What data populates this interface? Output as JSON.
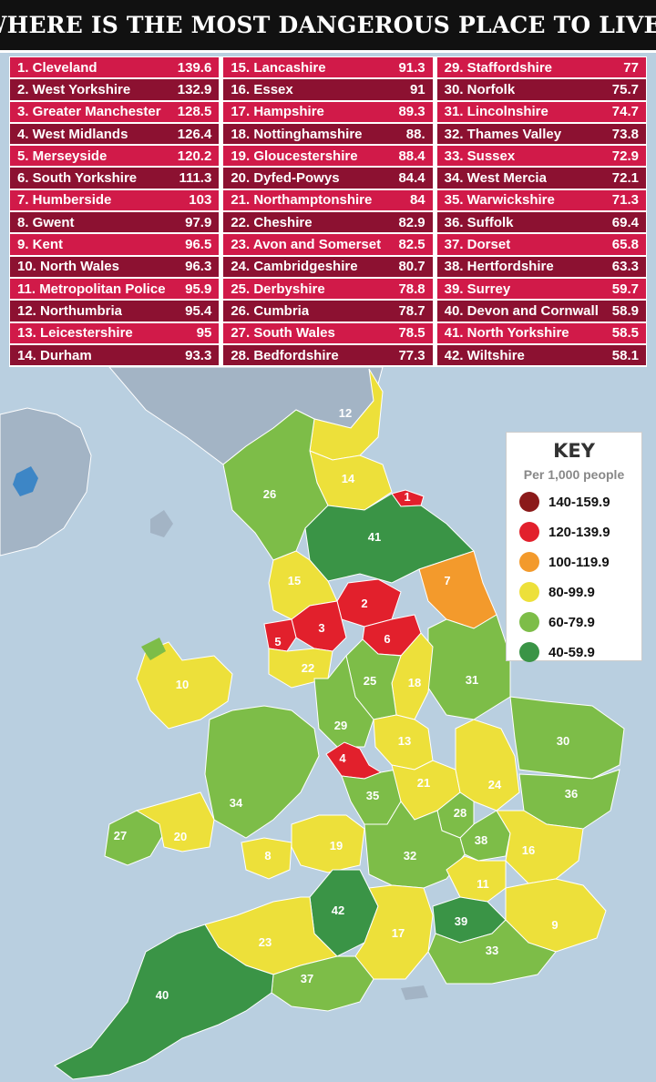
{
  "title": "WHERE IS THE MOST DANGEROUS PLACE TO LIVE?",
  "table": [
    [
      {
        "rank": "1.",
        "name": "Cleveland",
        "value": "139.6",
        "shade": "light"
      },
      {
        "rank": "2.",
        "name": "West Yorkshire",
        "value": "132.9",
        "shade": "dark"
      },
      {
        "rank": "3.",
        "name": "Greater Manchester",
        "value": "128.5",
        "shade": "light"
      },
      {
        "rank": "4.",
        "name": "West Midlands",
        "value": "126.4",
        "shade": "dark"
      },
      {
        "rank": "5.",
        "name": "Merseyside",
        "value": "120.2",
        "shade": "light"
      },
      {
        "rank": "6.",
        "name": "South Yorkshire",
        "value": "111.3",
        "shade": "dark"
      },
      {
        "rank": "7.",
        "name": "Humberside",
        "value": "103",
        "shade": "light"
      },
      {
        "rank": "8.",
        "name": "Gwent",
        "value": "97.9",
        "shade": "dark"
      },
      {
        "rank": "9.",
        "name": "Kent",
        "value": "96.5",
        "shade": "light"
      },
      {
        "rank": "10.",
        "name": "North Wales",
        "value": "96.3",
        "shade": "dark"
      },
      {
        "rank": "11.",
        "name": "Metropolitan Police",
        "value": "95.9",
        "shade": "light"
      },
      {
        "rank": "12.",
        "name": "Northumbria",
        "value": "95.4",
        "shade": "dark"
      },
      {
        "rank": "13.",
        "name": "Leicestershire",
        "value": "95",
        "shade": "light"
      },
      {
        "rank": "14.",
        "name": "Durham",
        "value": "93.3",
        "shade": "dark"
      }
    ],
    [
      {
        "rank": "15.",
        "name": "Lancashire",
        "value": "91.3",
        "shade": "light"
      },
      {
        "rank": "16.",
        "name": "Essex",
        "value": "91",
        "shade": "dark"
      },
      {
        "rank": "17.",
        "name": "Hampshire",
        "value": "89.3",
        "shade": "light"
      },
      {
        "rank": "18.",
        "name": "Nottinghamshire",
        "value": "88.",
        "shade": "dark"
      },
      {
        "rank": "19.",
        "name": "Gloucestershire",
        "value": "88.4",
        "shade": "light"
      },
      {
        "rank": "20.",
        "name": "Dyfed-Powys",
        "value": "84.4",
        "shade": "dark"
      },
      {
        "rank": "21.",
        "name": "Northamptonshire",
        "value": "84",
        "shade": "light"
      },
      {
        "rank": "22.",
        "name": "Cheshire",
        "value": "82.9",
        "shade": "dark"
      },
      {
        "rank": "23.",
        "name": "Avon and Somerset",
        "value": "82.5",
        "shade": "light"
      },
      {
        "rank": "24.",
        "name": "Cambridgeshire",
        "value": "80.7",
        "shade": "dark"
      },
      {
        "rank": "25.",
        "name": "Derbyshire",
        "value": "78.8",
        "shade": "light"
      },
      {
        "rank": "26.",
        "name": "Cumbria",
        "value": "78.7",
        "shade": "dark"
      },
      {
        "rank": "27.",
        "name": "South Wales",
        "value": "78.5",
        "shade": "light"
      },
      {
        "rank": "28.",
        "name": "Bedfordshire",
        "value": "77.3",
        "shade": "dark"
      }
    ],
    [
      {
        "rank": "29.",
        "name": "Staffordshire",
        "value": "77",
        "shade": "light"
      },
      {
        "rank": "30.",
        "name": "Norfolk",
        "value": "75.7",
        "shade": "dark"
      },
      {
        "rank": "31.",
        "name": "Lincolnshire",
        "value": "74.7",
        "shade": "light"
      },
      {
        "rank": "32.",
        "name": "Thames Valley",
        "value": "73.8",
        "shade": "dark"
      },
      {
        "rank": "33.",
        "name": "Sussex",
        "value": "72.9",
        "shade": "light"
      },
      {
        "rank": "34.",
        "name": "West Mercia",
        "value": "72.1",
        "shade": "dark"
      },
      {
        "rank": "35.",
        "name": "Warwickshire",
        "value": "71.3",
        "shade": "light"
      },
      {
        "rank": "36.",
        "name": "Suffolk",
        "value": "69.4",
        "shade": "dark"
      },
      {
        "rank": "37.",
        "name": "Dorset",
        "value": "65.8",
        "shade": "light"
      },
      {
        "rank": "38.",
        "name": "Hertfordshire",
        "value": "63.3",
        "shade": "dark"
      },
      {
        "rank": "39.",
        "name": "Surrey",
        "value": "59.7",
        "shade": "light"
      },
      {
        "rank": "40.",
        "name": "Devon and Cornwall",
        "value": "58.9",
        "shade": "dark"
      },
      {
        "rank": "41.",
        "name": "North Yorkshire",
        "value": "58.5",
        "shade": "light"
      },
      {
        "rank": "42.",
        "name": "Wiltshire",
        "value": "58.1",
        "shade": "dark"
      }
    ]
  ],
  "key": {
    "title": "KEY",
    "subtitle": "Per 1,000 people",
    "items": [
      {
        "label": "140-159.9",
        "color": "#8b1a1a"
      },
      {
        "label": "120-139.9",
        "color": "#e2202c"
      },
      {
        "label": "100-119.9",
        "color": "#f39a2c"
      },
      {
        "label": "80-99.9",
        "color": "#ede03a"
      },
      {
        "label": "60-79.9",
        "color": "#7dbd48"
      },
      {
        "label": "40-59.9",
        "color": "#3a9446"
      }
    ]
  },
  "colors": {
    "table_light": "#d11a49",
    "table_dark": "#8c1131",
    "sea": "#b9cfe0",
    "no_data": "#a3b4c5"
  },
  "map_labels": [
    "1",
    "2",
    "3",
    "4",
    "5",
    "6",
    "7",
    "8",
    "9",
    "10",
    "11",
    "12",
    "13",
    "14",
    "15",
    "16",
    "17",
    "18",
    "19",
    "20",
    "21",
    "22",
    "23",
    "24",
    "25",
    "26",
    "27",
    "28",
    "29",
    "30",
    "31",
    "32",
    "33",
    "34",
    "35",
    "36",
    "37",
    "38",
    "39",
    "40",
    "41",
    "42"
  ]
}
